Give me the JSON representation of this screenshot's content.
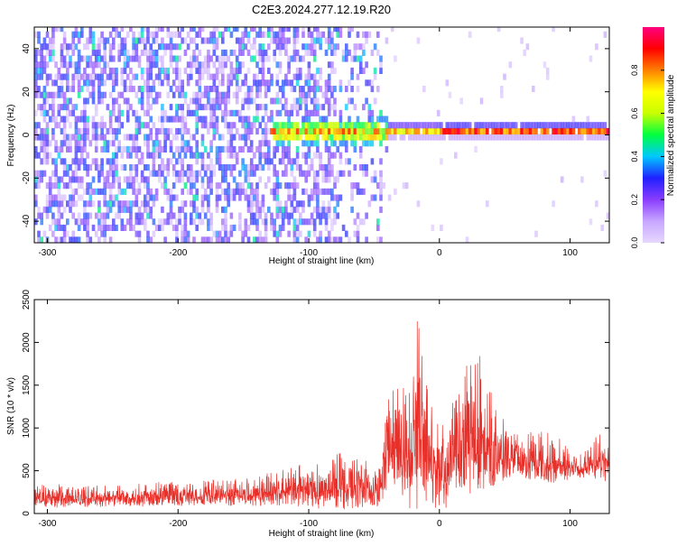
{
  "chart_data": [
    {
      "type": "heatmap",
      "title": "C2E3.2024.277.12.19.R20",
      "xlabel": "Height of straight line (km)",
      "ylabel": "Frequency (Hz)",
      "xlim": [
        -310,
        130
      ],
      "ylim": [
        -50,
        50
      ],
      "xticks": [
        -300,
        -200,
        -100,
        0,
        100
      ],
      "yticks": [
        -40,
        -20,
        0,
        20,
        40
      ],
      "grid": false,
      "colorbar": {
        "label": "Normalized spectral amplitude",
        "ticks": [
          "0.0",
          "0.2",
          "0.4",
          "0.6",
          "0.8"
        ],
        "range": [
          0,
          1
        ],
        "colormap": [
          "#e6d8ff",
          "#c7a6ff",
          "#8a3dff",
          "#2020ff",
          "#00c8ff",
          "#00ff40",
          "#c8ff00",
          "#ffff00",
          "#ff8000",
          "#ff0000",
          "#ff0080"
        ]
      },
      "features": [
        {
          "x_range": [
            -310,
            -45
          ],
          "y_range": [
            -50,
            50
          ],
          "level": 0.15,
          "description_hidden": true
        },
        {
          "x_range": [
            -130,
            -40
          ],
          "y_range": [
            -10,
            10
          ],
          "level": 0.35
        },
        {
          "x_range": [
            -40,
            130
          ],
          "y_range": [
            -2,
            4
          ],
          "level": 0.75
        }
      ]
    },
    {
      "type": "line",
      "xlabel": "Height of straight line (km)",
      "ylabel": "SNR (10 * v/v)",
      "xlim": [
        -310,
        130
      ],
      "ylim": [
        0,
        2500
      ],
      "xticks": [
        -300,
        -200,
        -100,
        0,
        100
      ],
      "yticks": [
        0,
        500,
        1000,
        1500,
        2000,
        2500
      ],
      "grid": false,
      "line_color": "#e8302a",
      "envelope": {
        "x": [
          -310,
          -250,
          -200,
          -150,
          -120,
          -100,
          -80,
          -60,
          -50,
          -45,
          -40,
          -35,
          -30,
          -25,
          -20,
          -18,
          -15,
          -10,
          -5,
          0,
          10,
          20,
          25,
          30,
          35,
          40,
          45,
          50,
          60,
          80,
          100,
          110,
          120,
          130
        ],
        "mean": [
          200,
          200,
          220,
          250,
          290,
          320,
          350,
          380,
          300,
          330,
          700,
          800,
          850,
          800,
          750,
          900,
          800,
          700,
          600,
          500,
          700,
          900,
          1000,
          1100,
          1050,
          800,
          750,
          700,
          650,
          650,
          600,
          550,
          650,
          600
        ],
        "peak": [
          350,
          340,
          380,
          430,
          520,
          600,
          700,
          750,
          600,
          650,
          1300,
          1500,
          1750,
          1400,
          1800,
          2500,
          2100,
          1800,
          1300,
          1100,
          1300,
          1700,
          1900,
          2250,
          1900,
          1500,
          1200,
          1100,
          950,
          1000,
          850,
          700,
          950,
          900
        ]
      }
    }
  ]
}
